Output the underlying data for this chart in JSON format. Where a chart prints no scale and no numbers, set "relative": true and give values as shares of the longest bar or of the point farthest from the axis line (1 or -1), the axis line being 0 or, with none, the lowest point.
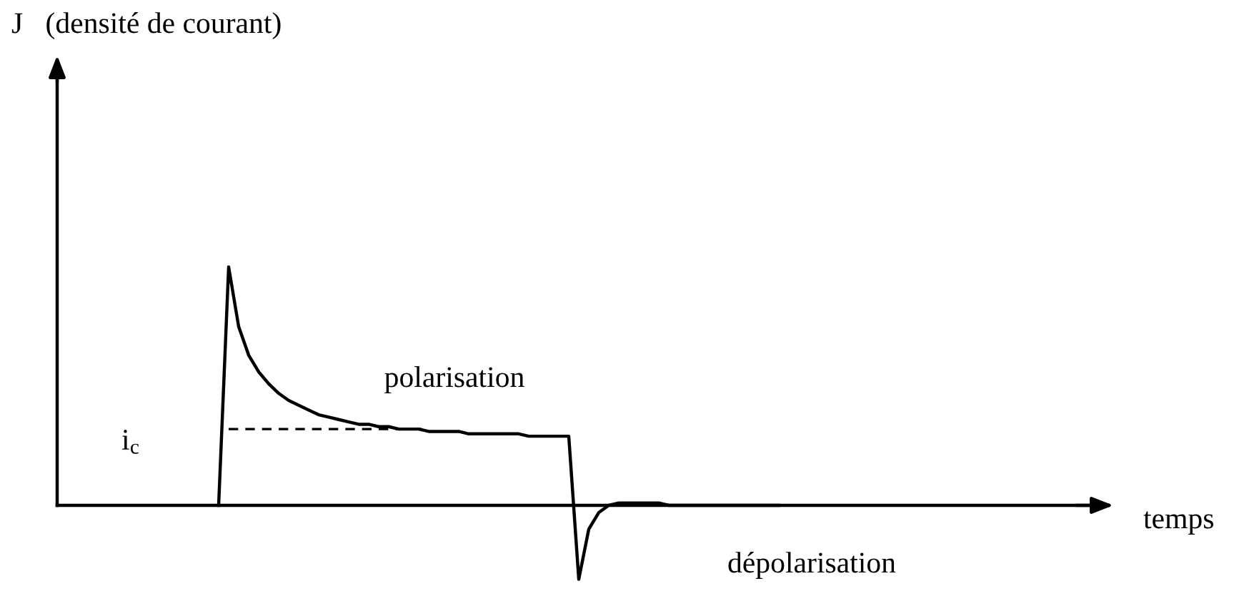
{
  "chart_data": {
    "type": "line",
    "relative": true,
    "xlabel": "temps",
    "annotations": [
      "J   (densité de courant)",
      "polarisation",
      "dépolarisation"
    ],
    "categories": [
      null,
      null,
      null,
      null,
      null,
      null,
      null,
      null,
      null,
      null,
      null,
      null,
      null,
      null,
      null,
      null,
      null,
      null,
      null,
      null,
      null,
      null,
      null,
      null,
      null,
      null,
      null,
      null,
      null,
      null,
      null,
      null,
      null,
      null,
      null,
      null,
      null,
      null,
      null,
      null,
      null,
      null,
      null,
      null,
      null,
      null,
      null,
      null,
      null,
      null,
      null,
      null,
      null,
      null,
      null,
      null,
      null,
      null,
      null,
      null,
      null,
      null,
      null,
      null,
      null,
      null,
      null,
      null,
      null,
      null,
      null,
      null,
      null,
      null,
      null,
      null,
      null,
      null,
      null,
      null,
      null,
      null,
      null,
      null,
      null,
      null,
      null,
      null,
      null,
      null,
      null,
      null,
      null,
      null,
      null,
      null,
      null,
      null,
      null,
      null,
      null,
      null,
      null,
      null,
      null
    ],
    "series": [
      {
        "color": "#000000",
        "line_style": "solid",
        "values": [
          null,
          null,
          null,
          null,
          null,
          null,
          null,
          null,
          null,
          null,
          null,
          null,
          null,
          null,
          null,
          null,
          0,
          1.0,
          0.75,
          0.63,
          0.56,
          0.51,
          0.47,
          0.44,
          0.42,
          0.4,
          0.38,
          0.37,
          0.36,
          0.35,
          0.34,
          0.34,
          0.33,
          0.33,
          0.32,
          0.32,
          0.32,
          0.31,
          0.31,
          0.31,
          0.31,
          0.3,
          0.3,
          0.3,
          0.3,
          0.3,
          0.3,
          0.29,
          0.29,
          0.29,
          0.29,
          0.29,
          -0.31,
          -0.1,
          -0.03,
          0,
          0.01,
          0.01,
          0.01,
          0.01,
          0.01,
          0,
          0,
          0,
          0,
          0,
          0,
          0,
          0,
          0,
          0,
          0,
          0,
          null,
          null,
          null,
          null,
          null,
          null,
          null,
          null,
          null,
          null,
          null,
          null,
          null,
          null,
          null,
          null,
          null,
          null,
          null,
          null,
          null,
          null,
          null,
          null,
          null,
          null,
          null,
          null,
          null,
          null,
          null,
          null
        ]
      },
      {
        "name": "i$_{c}$",
        "color": "#000000",
        "line_style": "dashed",
        "values": [
          null,
          null,
          null,
          null,
          null,
          null,
          null,
          null,
          null,
          null,
          null,
          null,
          null,
          null,
          null,
          null,
          null,
          0.32,
          0.32,
          0.32,
          0.32,
          0.32,
          0.32,
          0.32,
          0.32,
          0.32,
          0.32,
          0.32,
          0.32,
          0.32,
          0.32,
          0.32,
          0.32,
          0.32,
          0.32,
          0.32,
          0.32,
          0.32,
          null,
          null,
          null,
          null,
          null,
          null,
          null,
          null,
          null,
          null,
          null,
          null,
          null,
          null,
          null,
          null,
          null,
          null,
          null,
          null,
          null,
          null,
          null,
          null,
          null,
          null,
          null,
          null,
          null,
          null,
          null,
          null,
          null,
          null,
          null,
          null,
          null,
          null,
          null,
          null,
          null,
          null,
          null,
          null,
          null,
          null,
          null,
          null,
          null,
          null,
          null,
          null,
          null,
          null,
          null,
          null,
          null,
          null,
          null,
          null,
          null,
          null,
          null,
          null,
          null,
          null,
          null
        ]
      }
    ]
  }
}
